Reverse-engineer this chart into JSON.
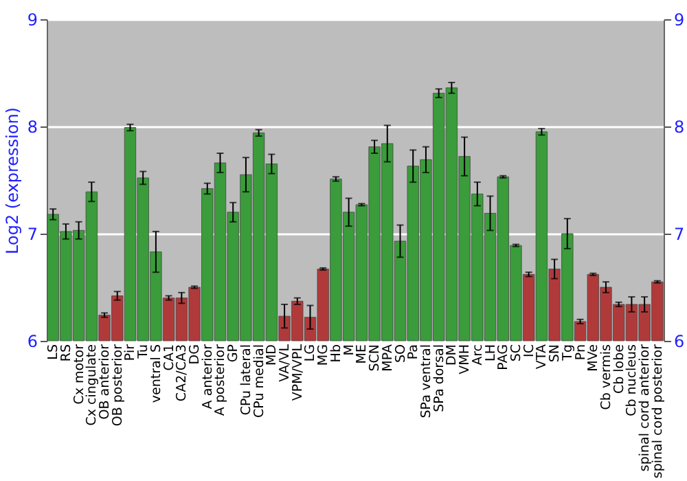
{
  "chart_data": {
    "type": "bar",
    "ylabel": "Log2 (expression)",
    "categories": [
      "LS",
      "RS",
      "Cx motor",
      "Cx cingulate",
      "OB anterior",
      "OB posterior",
      "Pir",
      "Tu",
      "ventral S",
      "CA1",
      "CA2/CA3",
      "DG",
      "A anterior",
      "A posterior",
      "GP",
      "CPu lateral",
      "CPu medial",
      "MD",
      "VA/VL",
      "VPM/VPL",
      "LG",
      "MG",
      "Hb",
      "M",
      "ME",
      "SCN",
      "MPA",
      "SO",
      "Pa",
      "SPa ventral",
      "SPa dorsal",
      "DM",
      "VMH",
      "Arc",
      "LH",
      "PAG",
      "SC",
      "IC",
      "VTA",
      "SN",
      "Tg",
      "Pn",
      "MVe",
      "Cb vermis",
      "Cb lobe",
      "Cb nucleus",
      "spinal cord anterior",
      "spinal cord posterior"
    ],
    "values": [
      7.18,
      7.02,
      7.03,
      7.39,
      6.24,
      6.42,
      7.99,
      7.52,
      6.83,
      6.4,
      6.4,
      6.5,
      7.42,
      7.66,
      7.2,
      7.55,
      7.94,
      7.65,
      6.23,
      6.37,
      6.22,
      6.67,
      7.51,
      7.2,
      7.27,
      7.81,
      7.84,
      6.93,
      7.63,
      7.69,
      8.31,
      8.36,
      7.72,
      7.37,
      7.19,
      7.53,
      6.89,
      6.62,
      7.95,
      6.67,
      7.0,
      6.18,
      6.62,
      6.5,
      6.34,
      6.34,
      6.34,
      6.55
    ],
    "errors": [
      0.05,
      0.07,
      0.08,
      0.09,
      0.02,
      0.04,
      0.03,
      0.06,
      0.19,
      0.02,
      0.05,
      0.01,
      0.05,
      0.09,
      0.09,
      0.16,
      0.03,
      0.09,
      0.11,
      0.03,
      0.11,
      0.01,
      0.02,
      0.13,
      0.01,
      0.06,
      0.17,
      0.15,
      0.15,
      0.12,
      0.04,
      0.05,
      0.18,
      0.11,
      0.16,
      0.01,
      0.01,
      0.02,
      0.03,
      0.09,
      0.14,
      0.02,
      0.01,
      0.05,
      0.02,
      0.07,
      0.07,
      0.01
    ],
    "colors": [
      "#3a9c3a",
      "#3a9c3a",
      "#3a9c3a",
      "#3a9c3a",
      "#b03a3a",
      "#b03a3a",
      "#3a9c3a",
      "#3a9c3a",
      "#3a9c3a",
      "#b03a3a",
      "#b03a3a",
      "#b03a3a",
      "#3a9c3a",
      "#3a9c3a",
      "#3a9c3a",
      "#3a9c3a",
      "#3a9c3a",
      "#3a9c3a",
      "#b03a3a",
      "#b03a3a",
      "#b03a3a",
      "#b03a3a",
      "#3a9c3a",
      "#3a9c3a",
      "#3a9c3a",
      "#3a9c3a",
      "#3a9c3a",
      "#3a9c3a",
      "#3a9c3a",
      "#3a9c3a",
      "#3a9c3a",
      "#3a9c3a",
      "#3a9c3a",
      "#3a9c3a",
      "#3a9c3a",
      "#3a9c3a",
      "#3a9c3a",
      "#b03a3a",
      "#3a9c3a",
      "#b03a3a",
      "#3a9c3a",
      "#b03a3a",
      "#b03a3a",
      "#b03a3a",
      "#b03a3a",
      "#b03a3a",
      "#b03a3a",
      "#b03a3a"
    ],
    "ylim": [
      6,
      9
    ],
    "yticks": [
      6,
      7,
      8,
      9
    ],
    "y2lim": [
      6,
      9
    ],
    "y2ticks": [
      6,
      7,
      8,
      9
    ],
    "grid": "y"
  }
}
